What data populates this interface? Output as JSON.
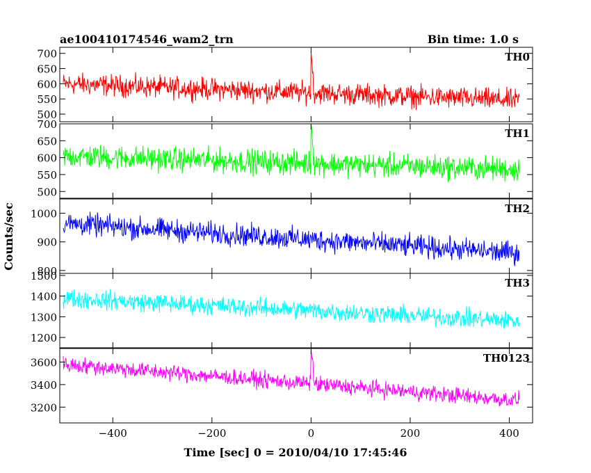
{
  "header": {
    "title": "ae100410174546_wam2_trn",
    "bin_time": "Bin time: 1.0 s"
  },
  "axes": {
    "xlabel": "Time [sec] 0 = 2010/04/10 17:45:46",
    "ylabel": "Counts/sec",
    "xticks": [
      -400,
      -200,
      0,
      200,
      400
    ],
    "xtick_labels": [
      "−400",
      "−200",
      "0",
      "200",
      "400"
    ]
  },
  "chart_data": {
    "type": "line",
    "x_range": [
      -500,
      420
    ],
    "xlim": [
      -507,
      447
    ],
    "bin": 1.0,
    "panels": [
      {
        "name": "TH0",
        "color": "#ff0000",
        "ylim": [
          475,
          720
        ],
        "yticks": [
          500,
          550,
          600,
          650,
          700
        ],
        "start_level": 600,
        "end_level": 545,
        "noise": 55,
        "spike_peak": 700
      },
      {
        "name": "TH1",
        "color": "#00ff00",
        "ylim": [
          480,
          700
        ],
        "yticks": [
          500,
          550,
          600,
          650,
          700
        ],
        "start_level": 605,
        "end_level": 565,
        "noise": 55,
        "spike_peak": 700
      },
      {
        "name": "TH2",
        "color": "#0000ff",
        "ylim": [
          790,
          1050
        ],
        "yticks": [
          800,
          900,
          1000
        ],
        "start_level": 965,
        "end_level": 860,
        "noise": 60,
        "spike_peak": null
      },
      {
        "name": "TH3",
        "color": "#00ffff",
        "ylim": [
          1150,
          1510
        ],
        "yticks": [
          1200,
          1300,
          1400,
          1500
        ],
        "start_level": 1390,
        "end_level": 1280,
        "noise": 70,
        "spike_peak": null
      },
      {
        "name": "TH0123",
        "color": "#ff00ff",
        "ylim": [
          3060,
          3720
        ],
        "yticks": [
          3200,
          3400,
          3600
        ],
        "start_level": 3580,
        "end_level": 3260,
        "noise": 110,
        "spike_peak": 3680
      }
    ]
  }
}
